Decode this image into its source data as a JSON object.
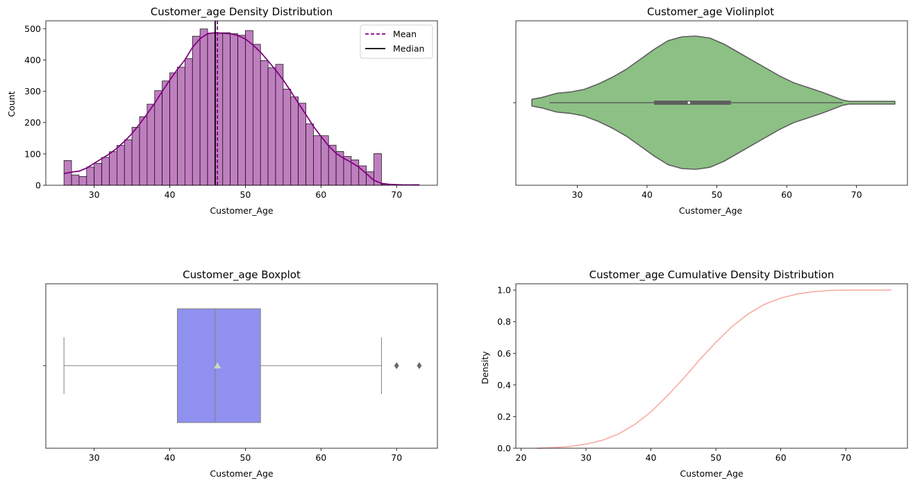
{
  "chart_data": [
    {
      "type": "bar",
      "title": "Customer_age Density Distribution",
      "xlabel": "Customer_Age",
      "ylabel": "Count",
      "xlim": [
        23.6,
        75.4
      ],
      "ylim": [
        0,
        525
      ],
      "xticks": [
        30,
        40,
        50,
        60,
        70
      ],
      "yticks": [
        0,
        100,
        200,
        300,
        400,
        500
      ],
      "bin_edges": [
        26.0,
        27.0,
        28.0,
        29.0,
        30.0,
        31.0,
        32.0,
        33.0,
        34.0,
        35.0,
        36.0,
        37.0,
        38.0,
        39.0,
        40.0,
        41.0,
        42.0,
        43.0,
        44.0,
        45.0,
        46.0,
        47.0,
        48.0,
        49.0,
        50.0,
        51.0,
        52.0,
        53.0,
        54.0,
        55.0,
        56.0,
        57.0,
        58.0,
        59.0,
        60.0,
        61.0,
        62.0,
        63.0,
        64.0,
        65.0,
        66.0,
        67.0,
        68.0,
        69.0,
        70.0,
        71.0,
        72.0,
        73.0
      ],
      "counts": [
        79,
        33,
        28,
        58,
        70,
        89,
        107,
        127,
        145,
        185,
        219,
        259,
        302,
        333,
        359,
        377,
        404,
        476,
        499,
        486,
        487,
        487,
        484,
        479,
        494,
        450,
        398,
        375,
        386,
        307,
        282,
        262,
        196,
        158,
        158,
        128,
        108,
        92,
        81,
        62,
        43,
        101,
        3,
        0,
        0,
        0,
        2
      ],
      "kde": {
        "x": [
          26,
          27,
          28,
          29,
          30,
          31,
          32,
          33,
          34,
          35,
          36,
          37,
          38,
          39,
          40,
          41,
          42,
          43,
          44,
          45,
          46,
          47,
          48,
          49,
          50,
          51,
          52,
          53,
          54,
          55,
          56,
          57,
          58,
          59,
          60,
          61,
          62,
          63,
          64,
          65,
          66,
          67,
          68,
          69,
          70,
          71,
          72,
          73
        ],
        "y": [
          37,
          42,
          45,
          55,
          70,
          85,
          100,
          118,
          140,
          165,
          195,
          228,
          262,
          300,
          336,
          370,
          400,
          440,
          468,
          484,
          487,
          485,
          484,
          478,
          467,
          448,
          425,
          397,
          368,
          336,
          300,
          262,
          226,
          188,
          156,
          126,
          102,
          86,
          73,
          58,
          37,
          16,
          6,
          3,
          2,
          1,
          1,
          1
        ]
      },
      "mean": 46.3,
      "median": 46,
      "legend": {
        "position": "upper right",
        "entries": [
          "Mean",
          "Median"
        ]
      },
      "colors": {
        "bars": "#bf7fbf",
        "bar_edge": "#000000",
        "kde": "#800080",
        "mean": "#800080",
        "median": "#000000"
      }
    },
    {
      "type": "violin",
      "title": "Customer_age Violinplot",
      "xlabel": "Customer_Age",
      "xlim": [
        21.2,
        77.3
      ],
      "xticks": [
        30,
        40,
        50,
        60,
        70
      ],
      "density_profile": {
        "x": [
          23.5,
          25,
          27,
          29,
          31,
          33,
          35,
          37,
          39,
          41,
          43,
          45,
          47,
          49,
          51,
          53,
          55,
          57,
          59,
          61,
          63,
          65,
          67,
          68,
          69,
          70,
          72,
          75.5
        ],
        "w": [
          0.05,
          0.08,
          0.14,
          0.16,
          0.2,
          0.28,
          0.38,
          0.5,
          0.65,
          0.8,
          0.93,
          0.99,
          1.0,
          0.97,
          0.88,
          0.76,
          0.64,
          0.52,
          0.4,
          0.3,
          0.23,
          0.16,
          0.08,
          0.04,
          0.02,
          0.02,
          0.02,
          0.02
        ]
      },
      "whisker_range": [
        26,
        68
      ],
      "quartiles": [
        41,
        52
      ],
      "median": 46,
      "colors": {
        "fill": "#8cc084",
        "edge": "#5e5e5e",
        "inner": "#5e5e5e",
        "median_dot": "#ffffff"
      }
    },
    {
      "type": "box",
      "title": "Customer_age Boxplot",
      "xlabel": "Customer_Age",
      "xlim": [
        23.6,
        75.4
      ],
      "xticks": [
        30,
        40,
        50,
        60,
        70
      ],
      "whiskers": [
        26,
        68
      ],
      "quartiles": [
        41,
        52
      ],
      "median": 46,
      "mean": 46.3,
      "outliers": [
        70,
        73
      ],
      "colors": {
        "box": "#9090f0",
        "line": "#808080",
        "mean_marker": "#c8d8c0",
        "outlier": "#6a6a6a"
      }
    },
    {
      "type": "line",
      "title": "Customer_age Cumulative Density Distribution",
      "xlabel": "Customer_Age",
      "ylabel": "Density",
      "xlim": [
        19.2,
        79.5
      ],
      "ylim": [
        0,
        1.04
      ],
      "xticks": [
        20,
        30,
        40,
        50,
        60,
        70
      ],
      "yticks": [
        0.0,
        0.2,
        0.4,
        0.6,
        0.8,
        1.0
      ],
      "x": [
        22.5,
        25,
        27.5,
        30,
        32.5,
        35,
        37.5,
        40,
        42.5,
        45,
        47.5,
        50,
        52.5,
        55,
        57.5,
        60,
        62.5,
        65,
        67.5,
        70,
        72.5,
        75,
        77
      ],
      "y": [
        0.0,
        0.004,
        0.011,
        0.026,
        0.05,
        0.09,
        0.15,
        0.23,
        0.33,
        0.44,
        0.56,
        0.67,
        0.77,
        0.85,
        0.91,
        0.95,
        0.975,
        0.99,
        0.998,
        1.0,
        1.0,
        1.0,
        1.0
      ],
      "colors": {
        "line": "#f7b3aa"
      }
    }
  ]
}
